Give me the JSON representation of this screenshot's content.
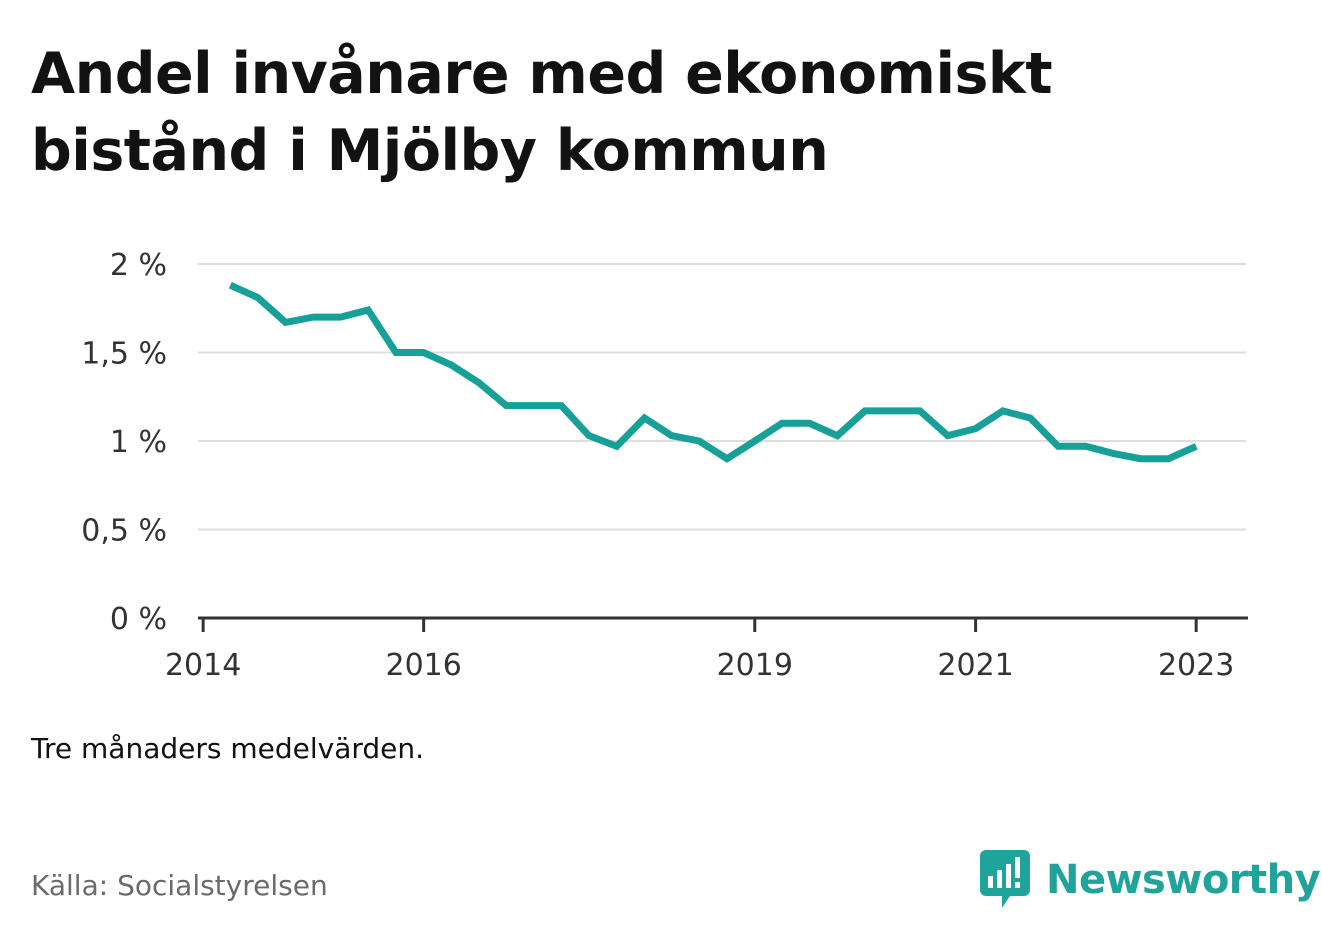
{
  "title": "Andel invånare med ekonomiskt bistånd i Mjölby kommun",
  "note": "Tre månaders medelvärden.",
  "source": "Källa: Socialstyrelsen",
  "brand": {
    "name": "Newsworthy",
    "icon": "chart-bubble-icon",
    "color": "#20a39a"
  },
  "colors": {
    "line": "#17a098",
    "grid": "#dddddd",
    "axis": "#333333"
  },
  "chart_data": {
    "type": "line",
    "title": "Andel invånare med ekonomiskt bistånd i Mjölby kommun",
    "xlabel": "",
    "ylabel": "",
    "grid": true,
    "legend": "none",
    "xlim": [
      "2013-12-15",
      "2023-06-15"
    ],
    "ylim": [
      0,
      2
    ],
    "x_ticks": [
      {
        "value": "2014-01-01",
        "label": "2014"
      },
      {
        "value": "2016-01-01",
        "label": "2016"
      },
      {
        "value": "2019-01-01",
        "label": "2019"
      },
      {
        "value": "2021-01-01",
        "label": "2021"
      },
      {
        "value": "2023-01-01",
        "label": "2023"
      }
    ],
    "y_ticks": [
      {
        "value": 0,
        "label": "0 %"
      },
      {
        "value": 0.5,
        "label": "0,5 %"
      },
      {
        "value": 1,
        "label": "1 %"
      },
      {
        "value": 1.5,
        "label": "1,5 %"
      },
      {
        "value": 2,
        "label": "2 %"
      }
    ],
    "series": [
      {
        "values": [
          {
            "x": "2014-04-01",
            "y": 1.88
          },
          {
            "x": "2014-07-01",
            "y": 1.81
          },
          {
            "x": "2014-10-01",
            "y": 1.67
          },
          {
            "x": "2015-01-01",
            "y": 1.7
          },
          {
            "x": "2015-04-01",
            "y": 1.7
          },
          {
            "x": "2015-07-01",
            "y": 1.74
          },
          {
            "x": "2015-10-01",
            "y": 1.5
          },
          {
            "x": "2016-01-01",
            "y": 1.5
          },
          {
            "x": "2016-04-01",
            "y": 1.43
          },
          {
            "x": "2016-07-01",
            "y": 1.33
          },
          {
            "x": "2016-10-01",
            "y": 1.2
          },
          {
            "x": "2017-01-01",
            "y": 1.2
          },
          {
            "x": "2017-04-01",
            "y": 1.2
          },
          {
            "x": "2017-07-01",
            "y": 1.03
          },
          {
            "x": "2017-10-01",
            "y": 0.97
          },
          {
            "x": "2018-01-01",
            "y": 1.13
          },
          {
            "x": "2018-04-01",
            "y": 1.03
          },
          {
            "x": "2018-07-01",
            "y": 1.0
          },
          {
            "x": "2018-10-01",
            "y": 0.9
          },
          {
            "x": "2019-01-01",
            "y": 1.0
          },
          {
            "x": "2019-04-01",
            "y": 1.1
          },
          {
            "x": "2019-07-01",
            "y": 1.1
          },
          {
            "x": "2019-10-01",
            "y": 1.03
          },
          {
            "x": "2020-01-01",
            "y": 1.17
          },
          {
            "x": "2020-04-01",
            "y": 1.17
          },
          {
            "x": "2020-07-01",
            "y": 1.17
          },
          {
            "x": "2020-10-01",
            "y": 1.03
          },
          {
            "x": "2021-01-01",
            "y": 1.07
          },
          {
            "x": "2021-04-01",
            "y": 1.17
          },
          {
            "x": "2021-07-01",
            "y": 1.13
          },
          {
            "x": "2021-10-01",
            "y": 0.97
          },
          {
            "x": "2022-01-01",
            "y": 0.97
          },
          {
            "x": "2022-04-01",
            "y": 0.93
          },
          {
            "x": "2022-07-01",
            "y": 0.9
          },
          {
            "x": "2022-10-01",
            "y": 0.9
          },
          {
            "x": "2023-01-01",
            "y": 0.97
          }
        ]
      }
    ]
  }
}
